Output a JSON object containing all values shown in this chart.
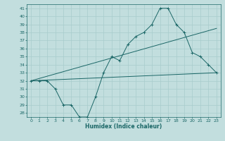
{
  "title": "",
  "xlabel": "Humidex (Indice chaleur)",
  "bg_color": "#c2dede",
  "grid_color": "#a8cccc",
  "line_color": "#1a6666",
  "xlim": [
    -0.5,
    23.5
  ],
  "ylim": [
    27.5,
    41.5
  ],
  "yticks": [
    28,
    29,
    30,
    31,
    32,
    33,
    34,
    35,
    36,
    37,
    38,
    39,
    40,
    41
  ],
  "xticks": [
    0,
    1,
    2,
    3,
    4,
    5,
    6,
    7,
    8,
    9,
    10,
    11,
    12,
    13,
    14,
    15,
    16,
    17,
    18,
    19,
    20,
    21,
    22,
    23
  ],
  "series0_x": [
    0,
    1,
    2,
    3,
    4,
    5,
    6,
    7,
    8,
    9,
    10,
    11,
    12,
    13,
    14,
    15,
    16,
    17,
    18,
    19,
    20,
    21,
    22,
    23
  ],
  "series0_y": [
    32,
    32,
    32,
    31,
    29,
    29,
    27.5,
    27.5,
    30,
    33,
    35,
    34.5,
    36.5,
    37.5,
    38,
    39,
    41,
    41,
    39,
    38,
    35.5,
    35,
    34,
    33
  ],
  "series1_x": [
    0,
    23
  ],
  "series1_y": [
    32,
    33
  ],
  "series2_x": [
    0,
    23
  ],
  "series2_y": [
    32,
    38.5
  ]
}
